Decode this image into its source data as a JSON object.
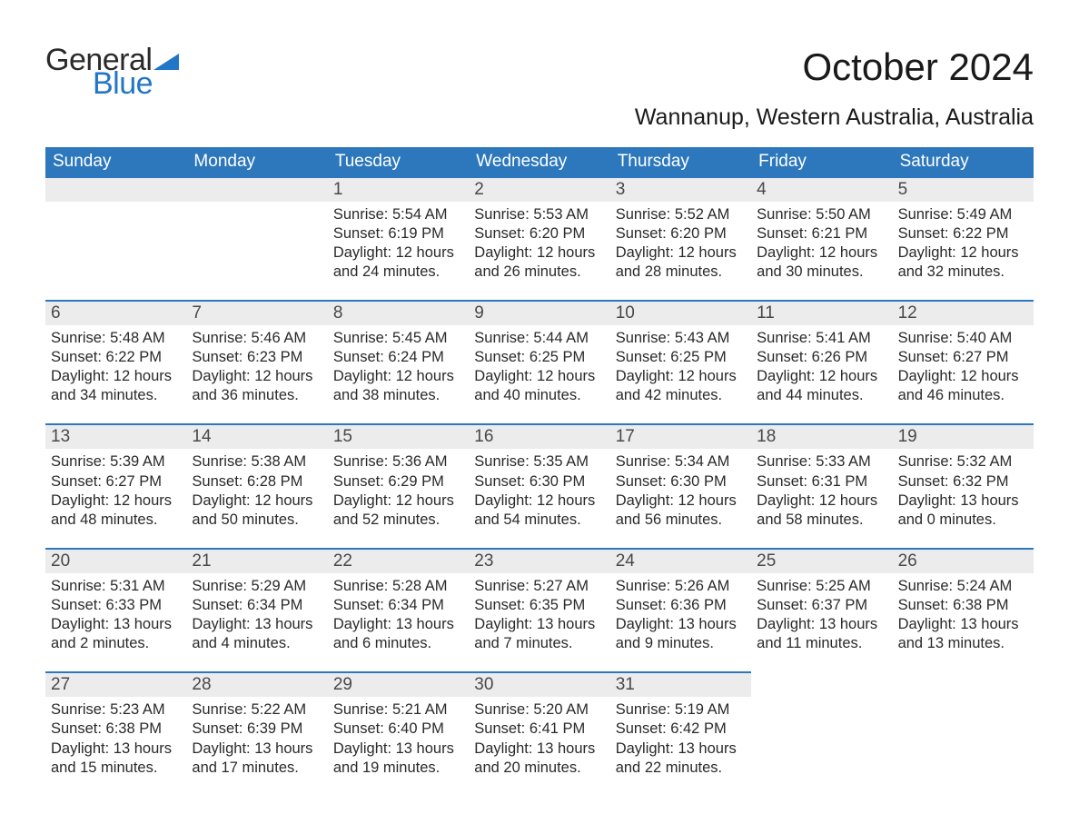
{
  "brand": {
    "word1": "General",
    "word2": "Blue"
  },
  "title": "October 2024",
  "subtitle": "Wannanup, Western Australia, Australia",
  "colors": {
    "header_bg": "#2d78bd",
    "header_text": "#ffffff",
    "daynum_bg": "#ececec",
    "daynum_border": "#2d78bd",
    "text": "#2a2a2a",
    "brand_dark": "#2a2a2a",
    "brand_blue": "#2176c7",
    "background": "#ffffff"
  },
  "typography": {
    "title_fontsize": 42,
    "subtitle_fontsize": 25,
    "dow_fontsize": 19,
    "daynum_fontsize": 19,
    "body_fontsize": 16.5,
    "font_family": "Arial"
  },
  "layout": {
    "columns": 7,
    "rows": 5
  },
  "days_of_week": [
    "Sunday",
    "Monday",
    "Tuesday",
    "Wednesday",
    "Thursday",
    "Friday",
    "Saturday"
  ],
  "weeks": [
    [
      {
        "day": null
      },
      {
        "day": null
      },
      {
        "day": 1,
        "sunrise": "5:54 AM",
        "sunset": "6:19 PM",
        "daylight_l1": "Daylight: 12 hours",
        "daylight_l2": "and 24 minutes."
      },
      {
        "day": 2,
        "sunrise": "5:53 AM",
        "sunset": "6:20 PM",
        "daylight_l1": "Daylight: 12 hours",
        "daylight_l2": "and 26 minutes."
      },
      {
        "day": 3,
        "sunrise": "5:52 AM",
        "sunset": "6:20 PM",
        "daylight_l1": "Daylight: 12 hours",
        "daylight_l2": "and 28 minutes."
      },
      {
        "day": 4,
        "sunrise": "5:50 AM",
        "sunset": "6:21 PM",
        "daylight_l1": "Daylight: 12 hours",
        "daylight_l2": "and 30 minutes."
      },
      {
        "day": 5,
        "sunrise": "5:49 AM",
        "sunset": "6:22 PM",
        "daylight_l1": "Daylight: 12 hours",
        "daylight_l2": "and 32 minutes."
      }
    ],
    [
      {
        "day": 6,
        "sunrise": "5:48 AM",
        "sunset": "6:22 PM",
        "daylight_l1": "Daylight: 12 hours",
        "daylight_l2": "and 34 minutes."
      },
      {
        "day": 7,
        "sunrise": "5:46 AM",
        "sunset": "6:23 PM",
        "daylight_l1": "Daylight: 12 hours",
        "daylight_l2": "and 36 minutes."
      },
      {
        "day": 8,
        "sunrise": "5:45 AM",
        "sunset": "6:24 PM",
        "daylight_l1": "Daylight: 12 hours",
        "daylight_l2": "and 38 minutes."
      },
      {
        "day": 9,
        "sunrise": "5:44 AM",
        "sunset": "6:25 PM",
        "daylight_l1": "Daylight: 12 hours",
        "daylight_l2": "and 40 minutes."
      },
      {
        "day": 10,
        "sunrise": "5:43 AM",
        "sunset": "6:25 PM",
        "daylight_l1": "Daylight: 12 hours",
        "daylight_l2": "and 42 minutes."
      },
      {
        "day": 11,
        "sunrise": "5:41 AM",
        "sunset": "6:26 PM",
        "daylight_l1": "Daylight: 12 hours",
        "daylight_l2": "and 44 minutes."
      },
      {
        "day": 12,
        "sunrise": "5:40 AM",
        "sunset": "6:27 PM",
        "daylight_l1": "Daylight: 12 hours",
        "daylight_l2": "and 46 minutes."
      }
    ],
    [
      {
        "day": 13,
        "sunrise": "5:39 AM",
        "sunset": "6:27 PM",
        "daylight_l1": "Daylight: 12 hours",
        "daylight_l2": "and 48 minutes."
      },
      {
        "day": 14,
        "sunrise": "5:38 AM",
        "sunset": "6:28 PM",
        "daylight_l1": "Daylight: 12 hours",
        "daylight_l2": "and 50 minutes."
      },
      {
        "day": 15,
        "sunrise": "5:36 AM",
        "sunset": "6:29 PM",
        "daylight_l1": "Daylight: 12 hours",
        "daylight_l2": "and 52 minutes."
      },
      {
        "day": 16,
        "sunrise": "5:35 AM",
        "sunset": "6:30 PM",
        "daylight_l1": "Daylight: 12 hours",
        "daylight_l2": "and 54 minutes."
      },
      {
        "day": 17,
        "sunrise": "5:34 AM",
        "sunset": "6:30 PM",
        "daylight_l1": "Daylight: 12 hours",
        "daylight_l2": "and 56 minutes."
      },
      {
        "day": 18,
        "sunrise": "5:33 AM",
        "sunset": "6:31 PM",
        "daylight_l1": "Daylight: 12 hours",
        "daylight_l2": "and 58 minutes."
      },
      {
        "day": 19,
        "sunrise": "5:32 AM",
        "sunset": "6:32 PM",
        "daylight_l1": "Daylight: 13 hours",
        "daylight_l2": "and 0 minutes."
      }
    ],
    [
      {
        "day": 20,
        "sunrise": "5:31 AM",
        "sunset": "6:33 PM",
        "daylight_l1": "Daylight: 13 hours",
        "daylight_l2": "and 2 minutes."
      },
      {
        "day": 21,
        "sunrise": "5:29 AM",
        "sunset": "6:34 PM",
        "daylight_l1": "Daylight: 13 hours",
        "daylight_l2": "and 4 minutes."
      },
      {
        "day": 22,
        "sunrise": "5:28 AM",
        "sunset": "6:34 PM",
        "daylight_l1": "Daylight: 13 hours",
        "daylight_l2": "and 6 minutes."
      },
      {
        "day": 23,
        "sunrise": "5:27 AM",
        "sunset": "6:35 PM",
        "daylight_l1": "Daylight: 13 hours",
        "daylight_l2": "and 7 minutes."
      },
      {
        "day": 24,
        "sunrise": "5:26 AM",
        "sunset": "6:36 PM",
        "daylight_l1": "Daylight: 13 hours",
        "daylight_l2": "and 9 minutes."
      },
      {
        "day": 25,
        "sunrise": "5:25 AM",
        "sunset": "6:37 PM",
        "daylight_l1": "Daylight: 13 hours",
        "daylight_l2": "and 11 minutes."
      },
      {
        "day": 26,
        "sunrise": "5:24 AM",
        "sunset": "6:38 PM",
        "daylight_l1": "Daylight: 13 hours",
        "daylight_l2": "and 13 minutes."
      }
    ],
    [
      {
        "day": 27,
        "sunrise": "5:23 AM",
        "sunset": "6:38 PM",
        "daylight_l1": "Daylight: 13 hours",
        "daylight_l2": "and 15 minutes."
      },
      {
        "day": 28,
        "sunrise": "5:22 AM",
        "sunset": "6:39 PM",
        "daylight_l1": "Daylight: 13 hours",
        "daylight_l2": "and 17 minutes."
      },
      {
        "day": 29,
        "sunrise": "5:21 AM",
        "sunset": "6:40 PM",
        "daylight_l1": "Daylight: 13 hours",
        "daylight_l2": "and 19 minutes."
      },
      {
        "day": 30,
        "sunrise": "5:20 AM",
        "sunset": "6:41 PM",
        "daylight_l1": "Daylight: 13 hours",
        "daylight_l2": "and 20 minutes."
      },
      {
        "day": 31,
        "sunrise": "5:19 AM",
        "sunset": "6:42 PM",
        "daylight_l1": "Daylight: 13 hours",
        "daylight_l2": "and 22 minutes."
      },
      {
        "day": null
      },
      {
        "day": null
      }
    ]
  ],
  "labels": {
    "sunrise_prefix": "Sunrise: ",
    "sunset_prefix": "Sunset: "
  }
}
